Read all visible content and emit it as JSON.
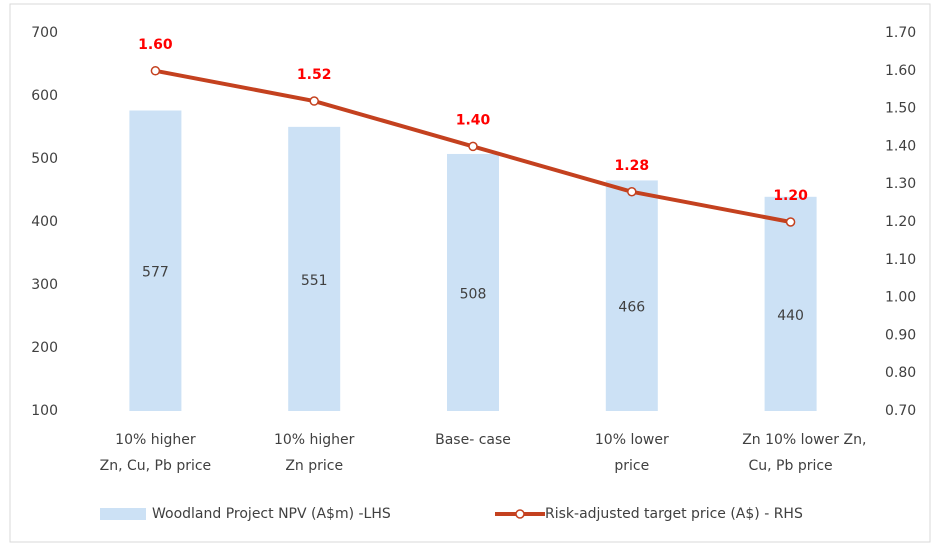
{
  "chart_data": {
    "type": "bar_line",
    "categories": [
      [
        "10% higher",
        "Zn, Cu, Pb price"
      ],
      [
        "10% higher",
        "Zn price"
      ],
      [
        "Base- case"
      ],
      [
        "10% lower",
        "price"
      ],
      [
        "Zn 10% lower",
        "Cu, Pb price"
      ]
    ],
    "annotations": [
      "Zn,"
    ],
    "series": [
      {
        "name": "Woodland Project NPV (A$m) -LHS",
        "type": "bar",
        "color": "#cce1f5",
        "axis": "y",
        "values": [
          577,
          551,
          508,
          466,
          440
        ]
      },
      {
        "name": "Risk-adjusted target price (A$) - RHS",
        "type": "line",
        "color": "#c4411f",
        "axis": "y2",
        "values": [
          1.6,
          1.52,
          1.4,
          1.28,
          1.2
        ],
        "value_labels": [
          "1.60",
          "1.52",
          "1.40",
          "1.28",
          "1.20"
        ],
        "label_color": "#ff0000"
      }
    ],
    "ylim": [
      100,
      700
    ],
    "yticks": [
      100,
      200,
      300,
      400,
      500,
      600,
      700
    ],
    "y2lim": [
      0.7,
      1.7
    ],
    "y2ticks": [
      {
        "value": 0.7,
        "label": "0.70"
      },
      {
        "value": 0.8,
        "label": "0.80"
      },
      {
        "value": 0.9,
        "label": "0.90"
      },
      {
        "value": 1.0,
        "label": "1.00"
      },
      {
        "value": 1.1,
        "label": "1.10"
      },
      {
        "value": 1.2,
        "label": "1.20"
      },
      {
        "value": 1.3,
        "label": "1.30"
      },
      {
        "value": 1.4,
        "label": "1.40"
      },
      {
        "value": 1.5,
        "label": "1.50"
      },
      {
        "value": 1.6,
        "label": "1.60"
      },
      {
        "value": 1.7,
        "label": "1.70"
      }
    ],
    "grid": false,
    "legend": "bottom"
  }
}
